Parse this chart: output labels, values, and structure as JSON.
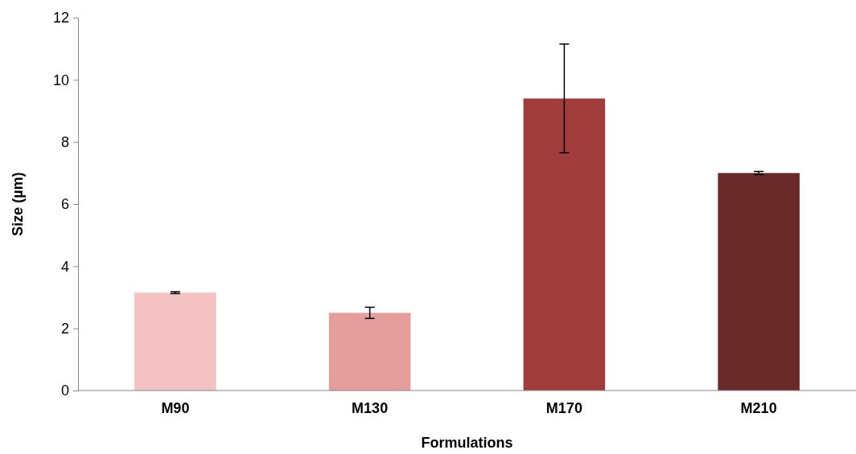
{
  "chart_data": {
    "type": "bar",
    "xlabel": "Formulations",
    "ylabel": "Size (µm)",
    "categories": [
      "M90",
      "M130",
      "M170",
      "M210"
    ],
    "values": [
      3.15,
      2.5,
      9.4,
      7.0
    ],
    "errors": [
      0.03,
      0.18,
      1.75,
      0.05
    ],
    "colors": [
      "#f4c2c2",
      "#e59e9c",
      "#a03c3c",
      "#6b2a2a"
    ],
    "ylim": [
      0,
      12
    ],
    "yticks": [
      0,
      2,
      4,
      6,
      8,
      10,
      12
    ],
    "grid": false
  }
}
